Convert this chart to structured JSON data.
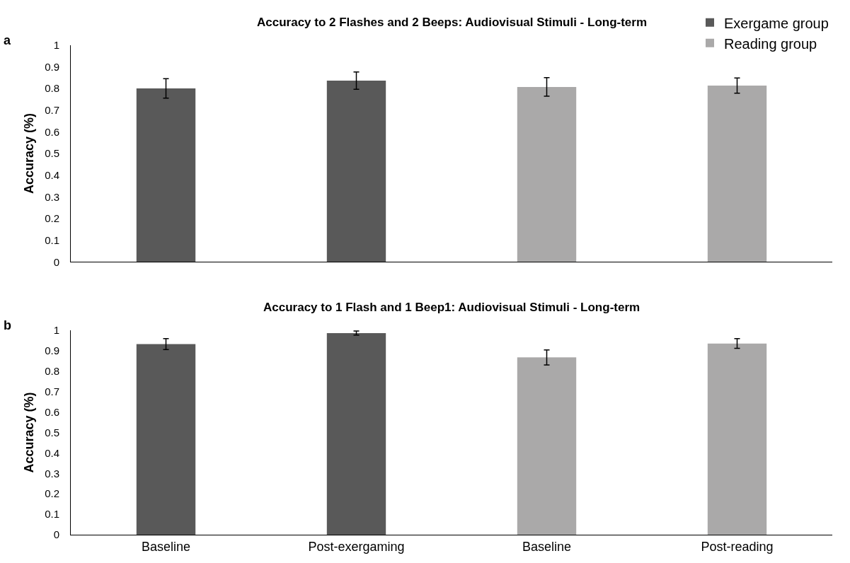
{
  "chart_data": [
    {
      "type": "bar",
      "title": "Accuracy to 2 Flashes and 2 Beeps: Audiovisual Stimuli - Long-term",
      "ylabel": "Accuracy (%)",
      "annotations": [
        "a"
      ],
      "categories": [
        null,
        null,
        null,
        null
      ],
      "series": [
        {
          "name": "Exergame group",
          "color": "#595959",
          "values": [
            0.8,
            0.836,
            null,
            null
          ],
          "errors": [
            0.045,
            0.04,
            null,
            null
          ]
        },
        {
          "name": "Reading group",
          "color": "#aaa9a9",
          "values": [
            null,
            null,
            0.807,
            0.813
          ],
          "errors": [
            null,
            null,
            0.043,
            0.035
          ]
        }
      ],
      "ylim": [
        0,
        1
      ],
      "yticks": [
        0,
        0.1,
        0.2,
        0.3,
        0.4,
        0.5,
        0.6,
        0.7,
        0.8,
        0.9,
        1
      ],
      "tick_labels": "y",
      "legend": "top right"
    },
    {
      "type": "bar",
      "title": "Accuracy to 1 Flash and 1 Beep1: Audiovisual Stimuli - Long-term",
      "ylabel": "Accuracy (%)",
      "annotations": [
        "b"
      ],
      "categories": [
        "Baseline",
        "Post-exergaming",
        "Baseline",
        "Post-reading"
      ],
      "series": [
        {
          "color": "#595959",
          "values": [
            0.932,
            0.986,
            null,
            null
          ],
          "errors": [
            0.027,
            0.01,
            null,
            null
          ]
        },
        {
          "color": "#aaa9a9",
          "values": [
            null,
            null,
            0.867,
            0.935
          ],
          "errors": [
            null,
            null,
            0.037,
            0.024
          ]
        }
      ],
      "ylim": [
        0,
        1
      ],
      "yticks": [
        0,
        0.1,
        0.2,
        0.3,
        0.4,
        0.5,
        0.6,
        0.7,
        0.8,
        0.9,
        1
      ],
      "legend": false
    }
  ]
}
